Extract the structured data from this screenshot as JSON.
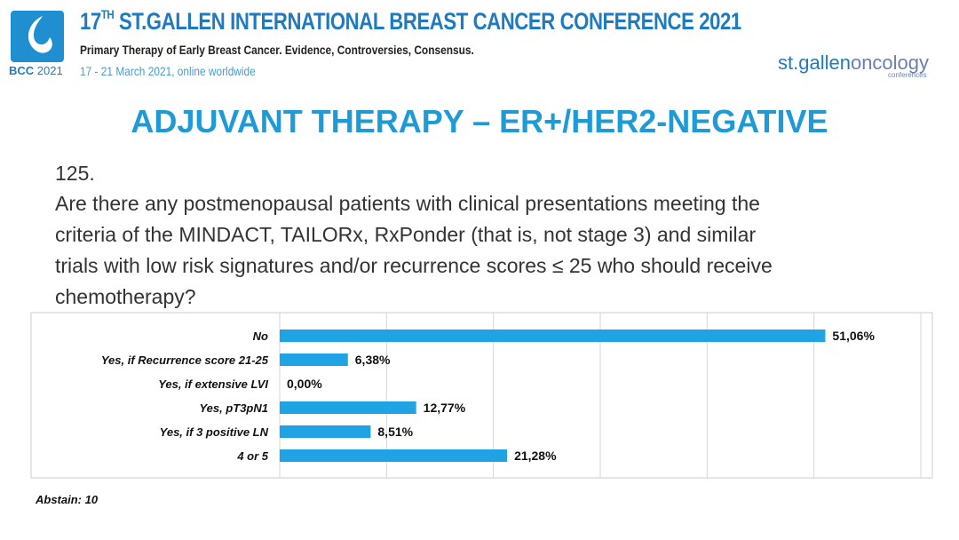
{
  "header": {
    "conference_num": "17",
    "conference_sup": "TH",
    "conference_rest": " ST.GALLEN INTERNATIONAL BREAST CANCER CONFERENCE 2021",
    "subtitle": "Primary Therapy of Early Breast Cancer. Evidence, Controversies, Consensus.",
    "dates": "17 - 21 March 2021, online worldwide",
    "logo_bcc": "BCC",
    "logo_year": "2021",
    "brand_a": "st.gallen",
    "brand_b": "oncology",
    "brand_c": "conferences"
  },
  "slide_title": "ADJUVANT THERAPY – ER+/HER2-NEGATIVE",
  "question_number": "125.",
  "question_lines": [
    "Are there any postmenopausal patients with clinical presentations meeting the",
    "criteria of the MINDACT, TAILORx, RxPonder (that is, not stage 3) and similar",
    "trials with low risk signatures and/or recurrence scores ≤ 25 who should receive",
    "chemotherapy?"
  ],
  "chart_data": {
    "type": "hbar",
    "categories": [
      "No",
      "Yes, if Recurrence score 21-25",
      "Yes, if extensive LVI",
      "Yes, pT3pN1",
      "Yes, if 3 positive LN",
      "4 or 5"
    ],
    "values": [
      51.06,
      6.38,
      0.0,
      12.77,
      8.51,
      21.28
    ],
    "value_labels": [
      "51,06%",
      "6,38%",
      "0,00%",
      "12,77%",
      "8,51%",
      "21,28%"
    ],
    "color": "#1fa3e4",
    "xlim": [
      0,
      60
    ],
    "xticks": [
      0,
      10,
      20,
      30,
      40,
      50,
      60
    ],
    "grid": true
  },
  "footnote": "Abstain: 10"
}
